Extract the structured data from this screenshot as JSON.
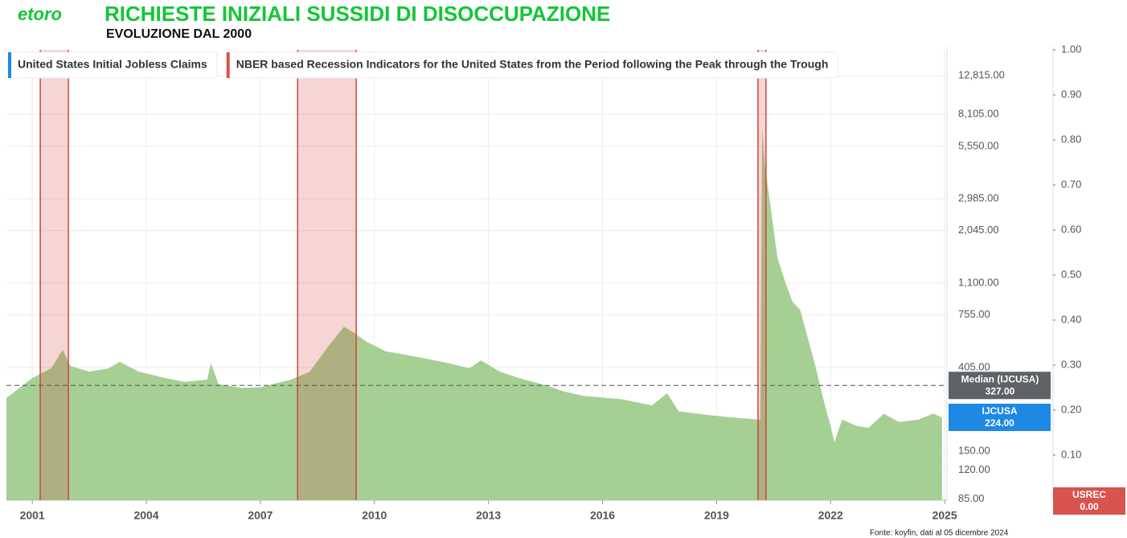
{
  "chart_data": {
    "type": "area",
    "brand": "etoro",
    "title": "RICHIESTE INIZIALI SUSSIDI DI DISOCCUPAZIONE",
    "subtitle": "EVOLUZIONE DAL 2000",
    "source": "Fonte: koyfin, dati al 05 dicembre 2024",
    "log_y": true,
    "grid": true,
    "xlim": [
      2000.32,
      2025.06
    ],
    "xticks": [
      2001,
      2004,
      2007,
      2010,
      2013,
      2016,
      2019,
      2022,
      2025
    ],
    "ylim": [
      84,
      17400
    ],
    "yticks": [
      {
        "value": 85,
        "label": "85.00"
      },
      {
        "value": 120,
        "label": "120.00"
      },
      {
        "value": 150,
        "label": "150.00"
      },
      {
        "value": 405,
        "label": "405.00"
      },
      {
        "value": 755,
        "label": "755.00"
      },
      {
        "value": 1100,
        "label": "1,100.00"
      },
      {
        "value": 2045,
        "label": "2,045.00"
      },
      {
        "value": 2985,
        "label": "2,985.00"
      },
      {
        "value": 5550,
        "label": "5,550.00"
      },
      {
        "value": 8105,
        "label": "8,105.00"
      },
      {
        "value": 12815,
        "label": "12,815.00"
      }
    ],
    "y2lim": [
      0,
      1
    ],
    "y2ticks": [
      {
        "value": 0.1,
        "label": "0.10"
      },
      {
        "value": 0.2,
        "label": "0.20"
      },
      {
        "value": 0.3,
        "label": "0.30"
      },
      {
        "value": 0.4,
        "label": "0.40"
      },
      {
        "value": 0.5,
        "label": "0.50"
      },
      {
        "value": 0.6,
        "label": "0.60"
      },
      {
        "value": 0.7,
        "label": "0.70"
      },
      {
        "value": 0.8,
        "label": "0.80"
      },
      {
        "value": 0.9,
        "label": "0.90"
      },
      {
        "value": 1,
        "label": "1.00"
      }
    ],
    "reference_lines": [
      {
        "name": "Median (IJCUSA)",
        "value": 327,
        "value_label": "327.00",
        "color": "#5f6368"
      }
    ],
    "series": [
      {
        "name": "United States Initial Jobless Claims",
        "short_name": "IJCUSA",
        "color": "#a6cf94",
        "label_color": "#1e88e5",
        "axis": "y",
        "x": [
          2000.32,
          2001.0,
          2001.5,
          2001.8,
          2002.0,
          2002.5,
          2003.0,
          2003.3,
          2003.8,
          2004.5,
          2005.0,
          2005.6,
          2005.7,
          2005.9,
          2006.5,
          2007.0,
          2007.8,
          2008.3,
          2008.8,
          2009.2,
          2009.5,
          2009.8,
          2010.3,
          2011.0,
          2011.8,
          2012.5,
          2012.8,
          2013.3,
          2013.8,
          2014.5,
          2015.0,
          2015.5,
          2016.5,
          2017.3,
          2017.7,
          2018.0,
          2018.8,
          2019.5,
          2020.15,
          2020.2,
          2020.27,
          2020.4,
          2020.6,
          2020.8,
          2021.0,
          2021.2,
          2021.4,
          2021.6,
          2021.8,
          2022.0,
          2022.1,
          2022.3,
          2022.7,
          2023.0,
          2023.4,
          2023.8,
          2024.3,
          2024.7,
          2024.93
        ],
        "values": [
          282,
          357,
          401,
          499,
          412,
          385,
          400,
          432,
          385,
          357,
          341,
          350,
          425,
          332,
          318,
          320,
          350,
          385,
          524,
          656,
          603,
          548,
          490,
          463,
          432,
          401,
          440,
          385,
          357,
          328,
          304,
          289,
          278,
          258,
          298,
          241,
          230,
          223,
          218,
          6840,
          4460,
          2910,
          1490,
          1120,
          880,
          800,
          574,
          412,
          282,
          202,
          167,
          218,
          202,
          198,
          234,
          212,
          218,
          234,
          224
        ],
        "last_value_label": "224.00"
      },
      {
        "name": "NBER based Recession Indicators for the United States from the Period following the Peak through the Trough",
        "short_name": "USREC",
        "color": "#d0453c",
        "label_color": "#d9534f",
        "axis": "y2",
        "x": [
          2000.32,
          2001.21,
          2001.21,
          2001.95,
          2001.95,
          2007.98,
          2007.98,
          2009.52,
          2009.52,
          2020.09,
          2020.09,
          2020.3,
          2020.3,
          2025.06
        ],
        "values": [
          0,
          0,
          1,
          1,
          0,
          0,
          1,
          1,
          0,
          0,
          1,
          1,
          0,
          0
        ],
        "last_value_label": "0.00"
      }
    ]
  }
}
